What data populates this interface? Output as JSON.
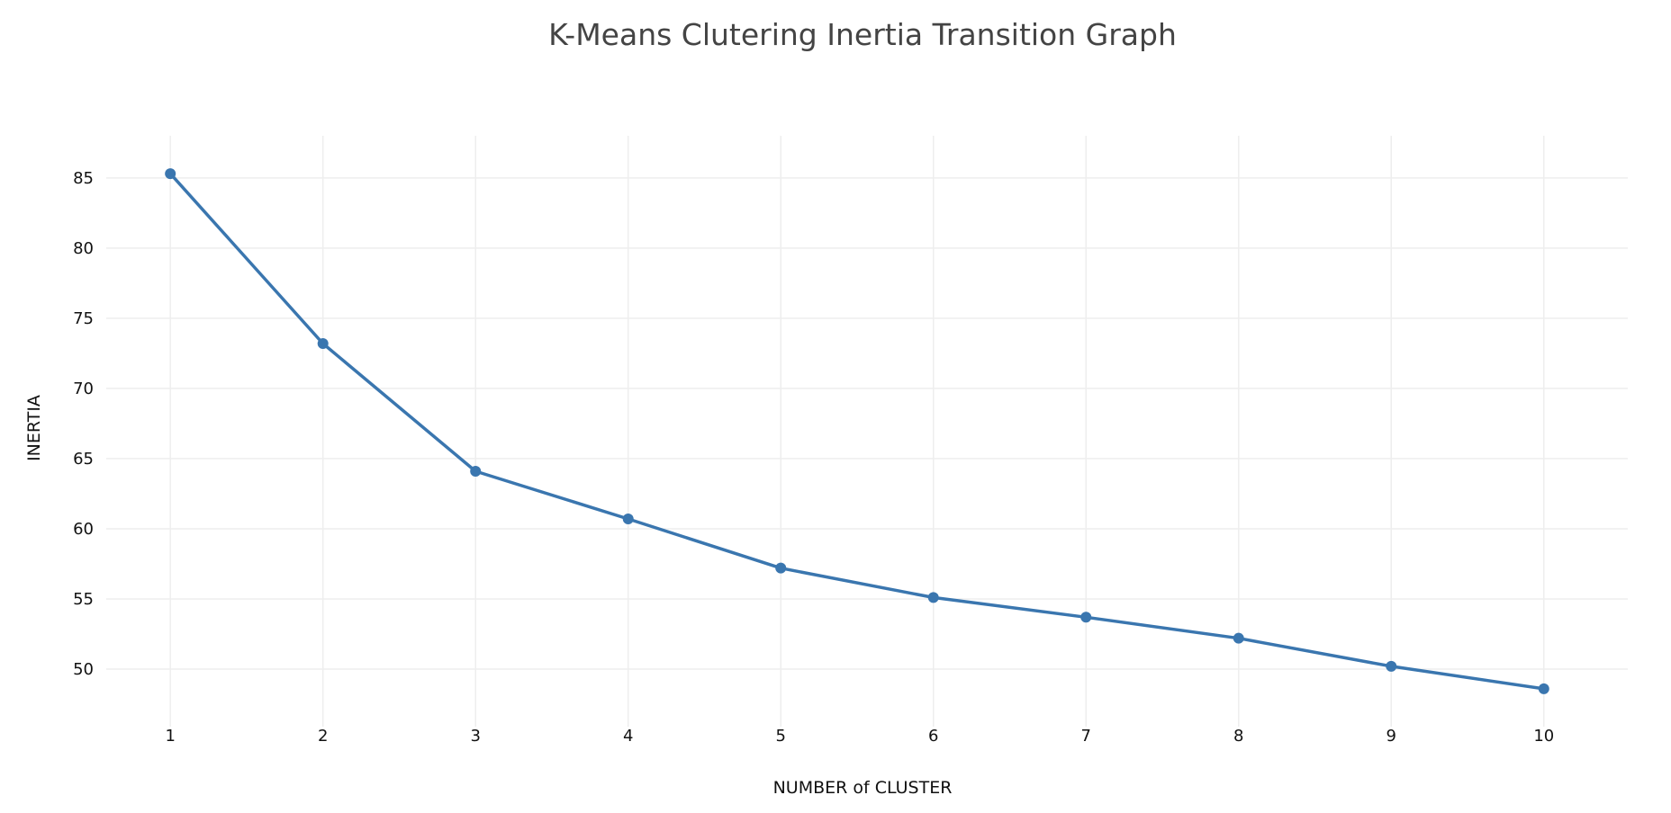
{
  "chart_data": {
    "type": "line",
    "title": "K-Means Clutering Inertia Transition Graph",
    "xlabel": "NUMBER of CLUSTER",
    "ylabel": "INERTIA",
    "x": [
      1,
      2,
      3,
      4,
      5,
      6,
      7,
      8,
      9,
      10
    ],
    "x_tick_labels": [
      "1",
      "2",
      "3",
      "4",
      "5",
      "6",
      "7",
      "8",
      "9",
      "10"
    ],
    "y_ticks": [
      50,
      55,
      60,
      65,
      70,
      75,
      80,
      85
    ],
    "y_tick_labels": [
      "50",
      "55",
      "60",
      "65",
      "70",
      "75",
      "80",
      "85"
    ],
    "xlim": [
      0.58,
      10.55
    ],
    "ylim": [
      45.9,
      88.0
    ],
    "series": [
      {
        "values": [
          85.3,
          73.2,
          64.1,
          60.7,
          57.2,
          55.1,
          53.7,
          52.2,
          50.2,
          48.6
        ],
        "color": "#3a76af"
      }
    ],
    "grid": true,
    "legend": "none"
  }
}
